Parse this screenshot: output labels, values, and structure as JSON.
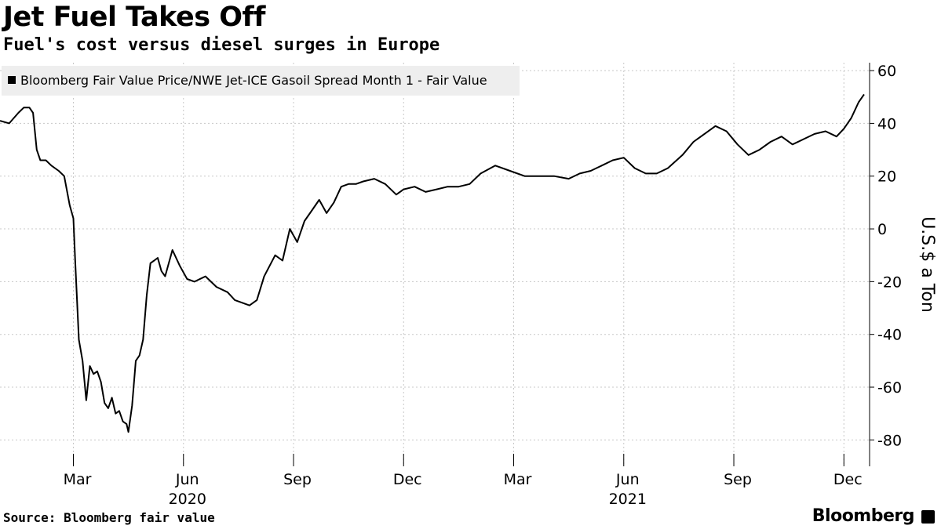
{
  "header": {
    "title": "Jet Fuel Takes Off",
    "subtitle": "Fuel's cost versus diesel surges in Europe"
  },
  "footer": {
    "source": "Source: Bloomberg fair value",
    "brand": "Bloomberg"
  },
  "colors": {
    "line": "#000000",
    "grid": "#c8c8c8",
    "legend_bg": "#eeeeee"
  },
  "chart_data": {
    "type": "line",
    "title": "Jet Fuel Takes Off",
    "ylabel": "U.S.$ a Ton",
    "xlabel": "",
    "ylim": [
      -90,
      63
    ],
    "yticks": [
      60,
      40,
      20,
      0,
      -20,
      -40,
      -60,
      -80
    ],
    "ytick_labels": [
      "60",
      "40",
      "20",
      "0",
      "-20",
      "-40",
      "-60",
      "-80"
    ],
    "xlim": [
      0,
      23.7
    ],
    "xticks": [
      {
        "label": "Mar",
        "x": 2
      },
      {
        "label": "Jun",
        "x": 5
      },
      {
        "label": "Sep",
        "x": 8
      },
      {
        "label": "Dec",
        "x": 11
      },
      {
        "label": "Mar",
        "x": 14
      },
      {
        "label": "Jun",
        "x": 17
      },
      {
        "label": "Sep",
        "x": 20
      },
      {
        "label": "Dec",
        "x": 23
      }
    ],
    "year_labels": [
      {
        "label": "2020",
        "x": 5
      },
      {
        "label": "2021",
        "x": 17
      }
    ],
    "legend": "Bloomberg Fair Value Price/NWE Jet-ICE Gasoil Spread Month 1 - Fair Value",
    "legend_position": "top-left",
    "series": [
      {
        "name": "Bloomberg Fair Value Price/NWE Jet-ICE Gasoil Spread Month 1 - Fair Value",
        "x": [
          0,
          0.25,
          0.5,
          0.65,
          0.8,
          0.9,
          1.0,
          1.1,
          1.25,
          1.4,
          1.6,
          1.75,
          1.9,
          2.0,
          2.05,
          2.15,
          2.25,
          2.35,
          2.45,
          2.55,
          2.65,
          2.75,
          2.8,
          2.85,
          2.95,
          3.05,
          3.15,
          3.25,
          3.35,
          3.45,
          3.5,
          3.6,
          3.7,
          3.8,
          3.9,
          4.0,
          4.1,
          4.2,
          4.3,
          4.4,
          4.5,
          4.7,
          4.9,
          5.1,
          5.3,
          5.6,
          5.9,
          6.2,
          6.4,
          6.6,
          6.8,
          7.0,
          7.2,
          7.5,
          7.7,
          7.9,
          8.1,
          8.3,
          8.5,
          8.7,
          8.9,
          9.1,
          9.3,
          9.5,
          9.7,
          9.9,
          10.2,
          10.5,
          10.8,
          11.0,
          11.3,
          11.6,
          11.9,
          12.2,
          12.5,
          12.8,
          13.1,
          13.5,
          13.9,
          14.3,
          14.7,
          15.1,
          15.5,
          15.8,
          16.1,
          16.4,
          16.7,
          17.0,
          17.3,
          17.6,
          17.9,
          18.2,
          18.6,
          18.9,
          19.2,
          19.5,
          19.8,
          20.1,
          20.4,
          20.7,
          21.0,
          21.3,
          21.6,
          21.9,
          22.2,
          22.5,
          22.8,
          23.0,
          23.2,
          23.4,
          23.55
        ],
        "y": [
          41,
          40,
          44,
          46,
          46,
          44,
          30,
          26,
          26,
          24,
          22,
          20,
          9,
          4,
          -12,
          -42,
          -50,
          -65,
          -52,
          -55,
          -54,
          -58,
          -62,
          -66,
          -68,
          -64,
          -70,
          -69,
          -73,
          -74,
          -77,
          -67,
          -50,
          -48,
          -42,
          -25,
          -13,
          -12,
          -11,
          -16,
          -18,
          -8,
          -14,
          -19,
          -20,
          -18,
          -22,
          -24,
          -27,
          -28,
          -29,
          -27,
          -18,
          -10,
          -12,
          0,
          -5,
          3,
          7,
          11,
          6,
          10,
          16,
          17,
          17,
          18,
          19,
          17,
          13,
          15,
          16,
          14,
          15,
          16,
          16,
          17,
          21,
          24,
          22,
          20,
          20,
          20,
          19,
          21,
          22,
          24,
          26,
          27,
          23,
          21,
          21,
          23,
          28,
          33,
          36,
          39,
          37,
          32,
          28,
          30,
          33,
          35,
          32,
          34,
          36,
          37,
          35,
          38,
          42,
          48,
          51
        ]
      }
    ]
  }
}
